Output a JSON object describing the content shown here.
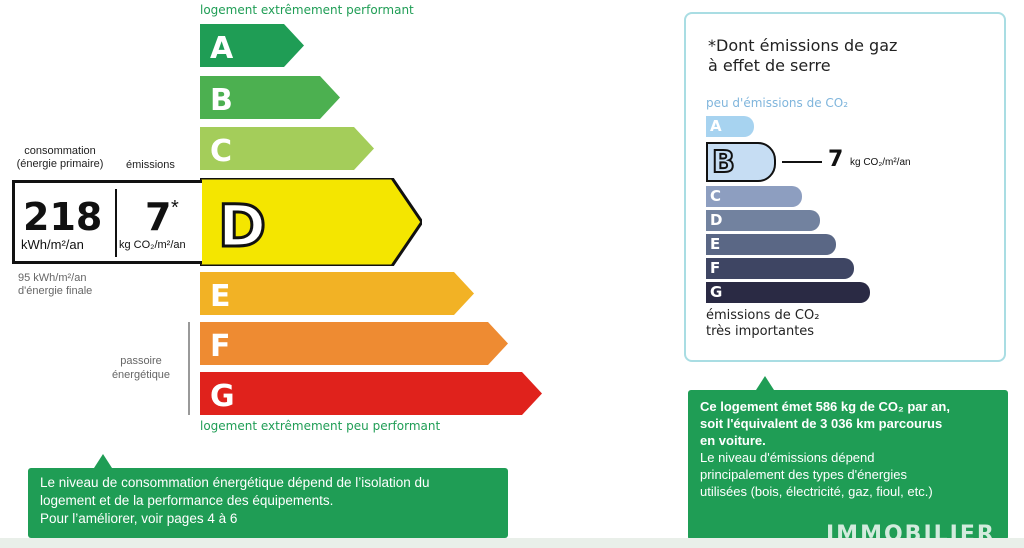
{
  "dpe": {
    "top_label": "logement extrêmement performant",
    "bottom_label": "logement extrêmement peu performant",
    "classes": [
      {
        "letter": "A",
        "color": "#1f9d55"
      },
      {
        "letter": "B",
        "color": "#4cb050"
      },
      {
        "letter": "C",
        "color": "#a4cd5a"
      },
      {
        "letter": "D",
        "color": "#f4e600"
      },
      {
        "letter": "E",
        "color": "#f2b225"
      },
      {
        "letter": "F",
        "color": "#ee8b32"
      },
      {
        "letter": "G",
        "color": "#e0221c"
      }
    ],
    "current_class": "D",
    "consumption_label": "consommation (énergie primaire)",
    "emissions_label": "émissions",
    "consumption_value": "218",
    "consumption_unit": "kWh/m²/an",
    "emissions_value": "7",
    "emissions_star": "*",
    "emissions_unit": "kg CO₂/m²/an",
    "final_energy_line1": "95 kWh/m²/an",
    "final_energy_line2": "d'énergie finale",
    "passoire_line1": "passoire",
    "passoire_line2": "énergétique",
    "info_line1": "Le niveau de consommation énergétique dépend de l’isolation du",
    "info_line2": "logement et de la performance des équipements.",
    "info_line3": "Pour l’améliorer, voir pages 4 à 6"
  },
  "ges": {
    "title_line1": "*Dont émissions de gaz",
    "title_line2": "à effet de serre",
    "low_label": "peu d'émissions de CO₂",
    "classes": [
      {
        "letter": "A",
        "color": "#a7d3f0"
      },
      {
        "letter": "B",
        "color": "#c6ddf3"
      },
      {
        "letter": "C",
        "color": "#8d9ec0"
      },
      {
        "letter": "D",
        "color": "#72829f"
      },
      {
        "letter": "E",
        "color": "#5a6785"
      },
      {
        "letter": "F",
        "color": "#3e4563"
      },
      {
        "letter": "G",
        "color": "#2a2a44"
      }
    ],
    "current_class": "B",
    "value": "7",
    "value_unit": "kg CO₂/m²/an",
    "high_label_line1": "émissions de CO₂",
    "high_label_line2": "très importantes",
    "info_bold_line1": "Ce logement émet 586 kg de CO₂ par an,",
    "info_bold_line2": "soit l'équivalent de 3 036 km parcourus",
    "info_bold_line3": "en voiture.",
    "info_line1": "Le niveau d'émissions dépend",
    "info_line2": "principalement des types d'énergies",
    "info_line3": "utilisées (bois, électricité, gaz, fioul, etc.)"
  },
  "watermark": {
    "brand": "IMMOBILIER"
  }
}
